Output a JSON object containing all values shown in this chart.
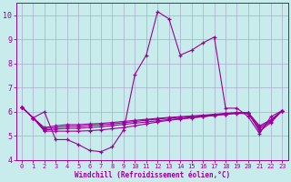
{
  "xlabel": "Windchill (Refroidissement éolien,°C)",
  "bg_color": "#c8ecec",
  "line_color": "#990099",
  "grid_color": "#aaaacc",
  "xlim": [
    -0.5,
    23.5
  ],
  "ylim": [
    4,
    10.5
  ],
  "xticks": [
    0,
    1,
    2,
    3,
    4,
    5,
    6,
    7,
    8,
    9,
    10,
    11,
    12,
    13,
    14,
    15,
    16,
    17,
    18,
    19,
    20,
    21,
    22,
    23
  ],
  "yticks": [
    4,
    5,
    6,
    7,
    8,
    9,
    10
  ],
  "line1_y": [
    6.2,
    5.75,
    6.0,
    4.85,
    4.85,
    4.65,
    4.4,
    4.35,
    4.55,
    5.25,
    7.55,
    8.35,
    10.15,
    9.85,
    8.35,
    8.55,
    8.85,
    9.1,
    6.15,
    6.15,
    5.8,
    5.1,
    5.8,
    6.05
  ],
  "line2_y": [
    6.2,
    5.75,
    5.2,
    5.2,
    5.2,
    5.2,
    5.22,
    5.25,
    5.3,
    5.35,
    5.42,
    5.5,
    5.58,
    5.65,
    5.7,
    5.75,
    5.8,
    5.85,
    5.9,
    5.95,
    5.95,
    5.2,
    5.55,
    6.05
  ],
  "line3_y": [
    6.2,
    5.75,
    5.25,
    5.28,
    5.32,
    5.32,
    5.36,
    5.38,
    5.43,
    5.48,
    5.53,
    5.58,
    5.63,
    5.68,
    5.72,
    5.76,
    5.8,
    5.85,
    5.9,
    5.93,
    5.93,
    5.28,
    5.6,
    6.05
  ],
  "line4_y": [
    6.2,
    5.75,
    5.3,
    5.35,
    5.4,
    5.4,
    5.44,
    5.46,
    5.5,
    5.55,
    5.6,
    5.65,
    5.7,
    5.74,
    5.77,
    5.8,
    5.84,
    5.88,
    5.92,
    5.96,
    5.96,
    5.35,
    5.64,
    6.05
  ],
  "line5_y": [
    6.2,
    5.75,
    5.35,
    5.42,
    5.47,
    5.47,
    5.5,
    5.52,
    5.56,
    5.6,
    5.65,
    5.69,
    5.73,
    5.77,
    5.8,
    5.83,
    5.86,
    5.9,
    5.94,
    5.97,
    5.97,
    5.42,
    5.67,
    6.05
  ]
}
